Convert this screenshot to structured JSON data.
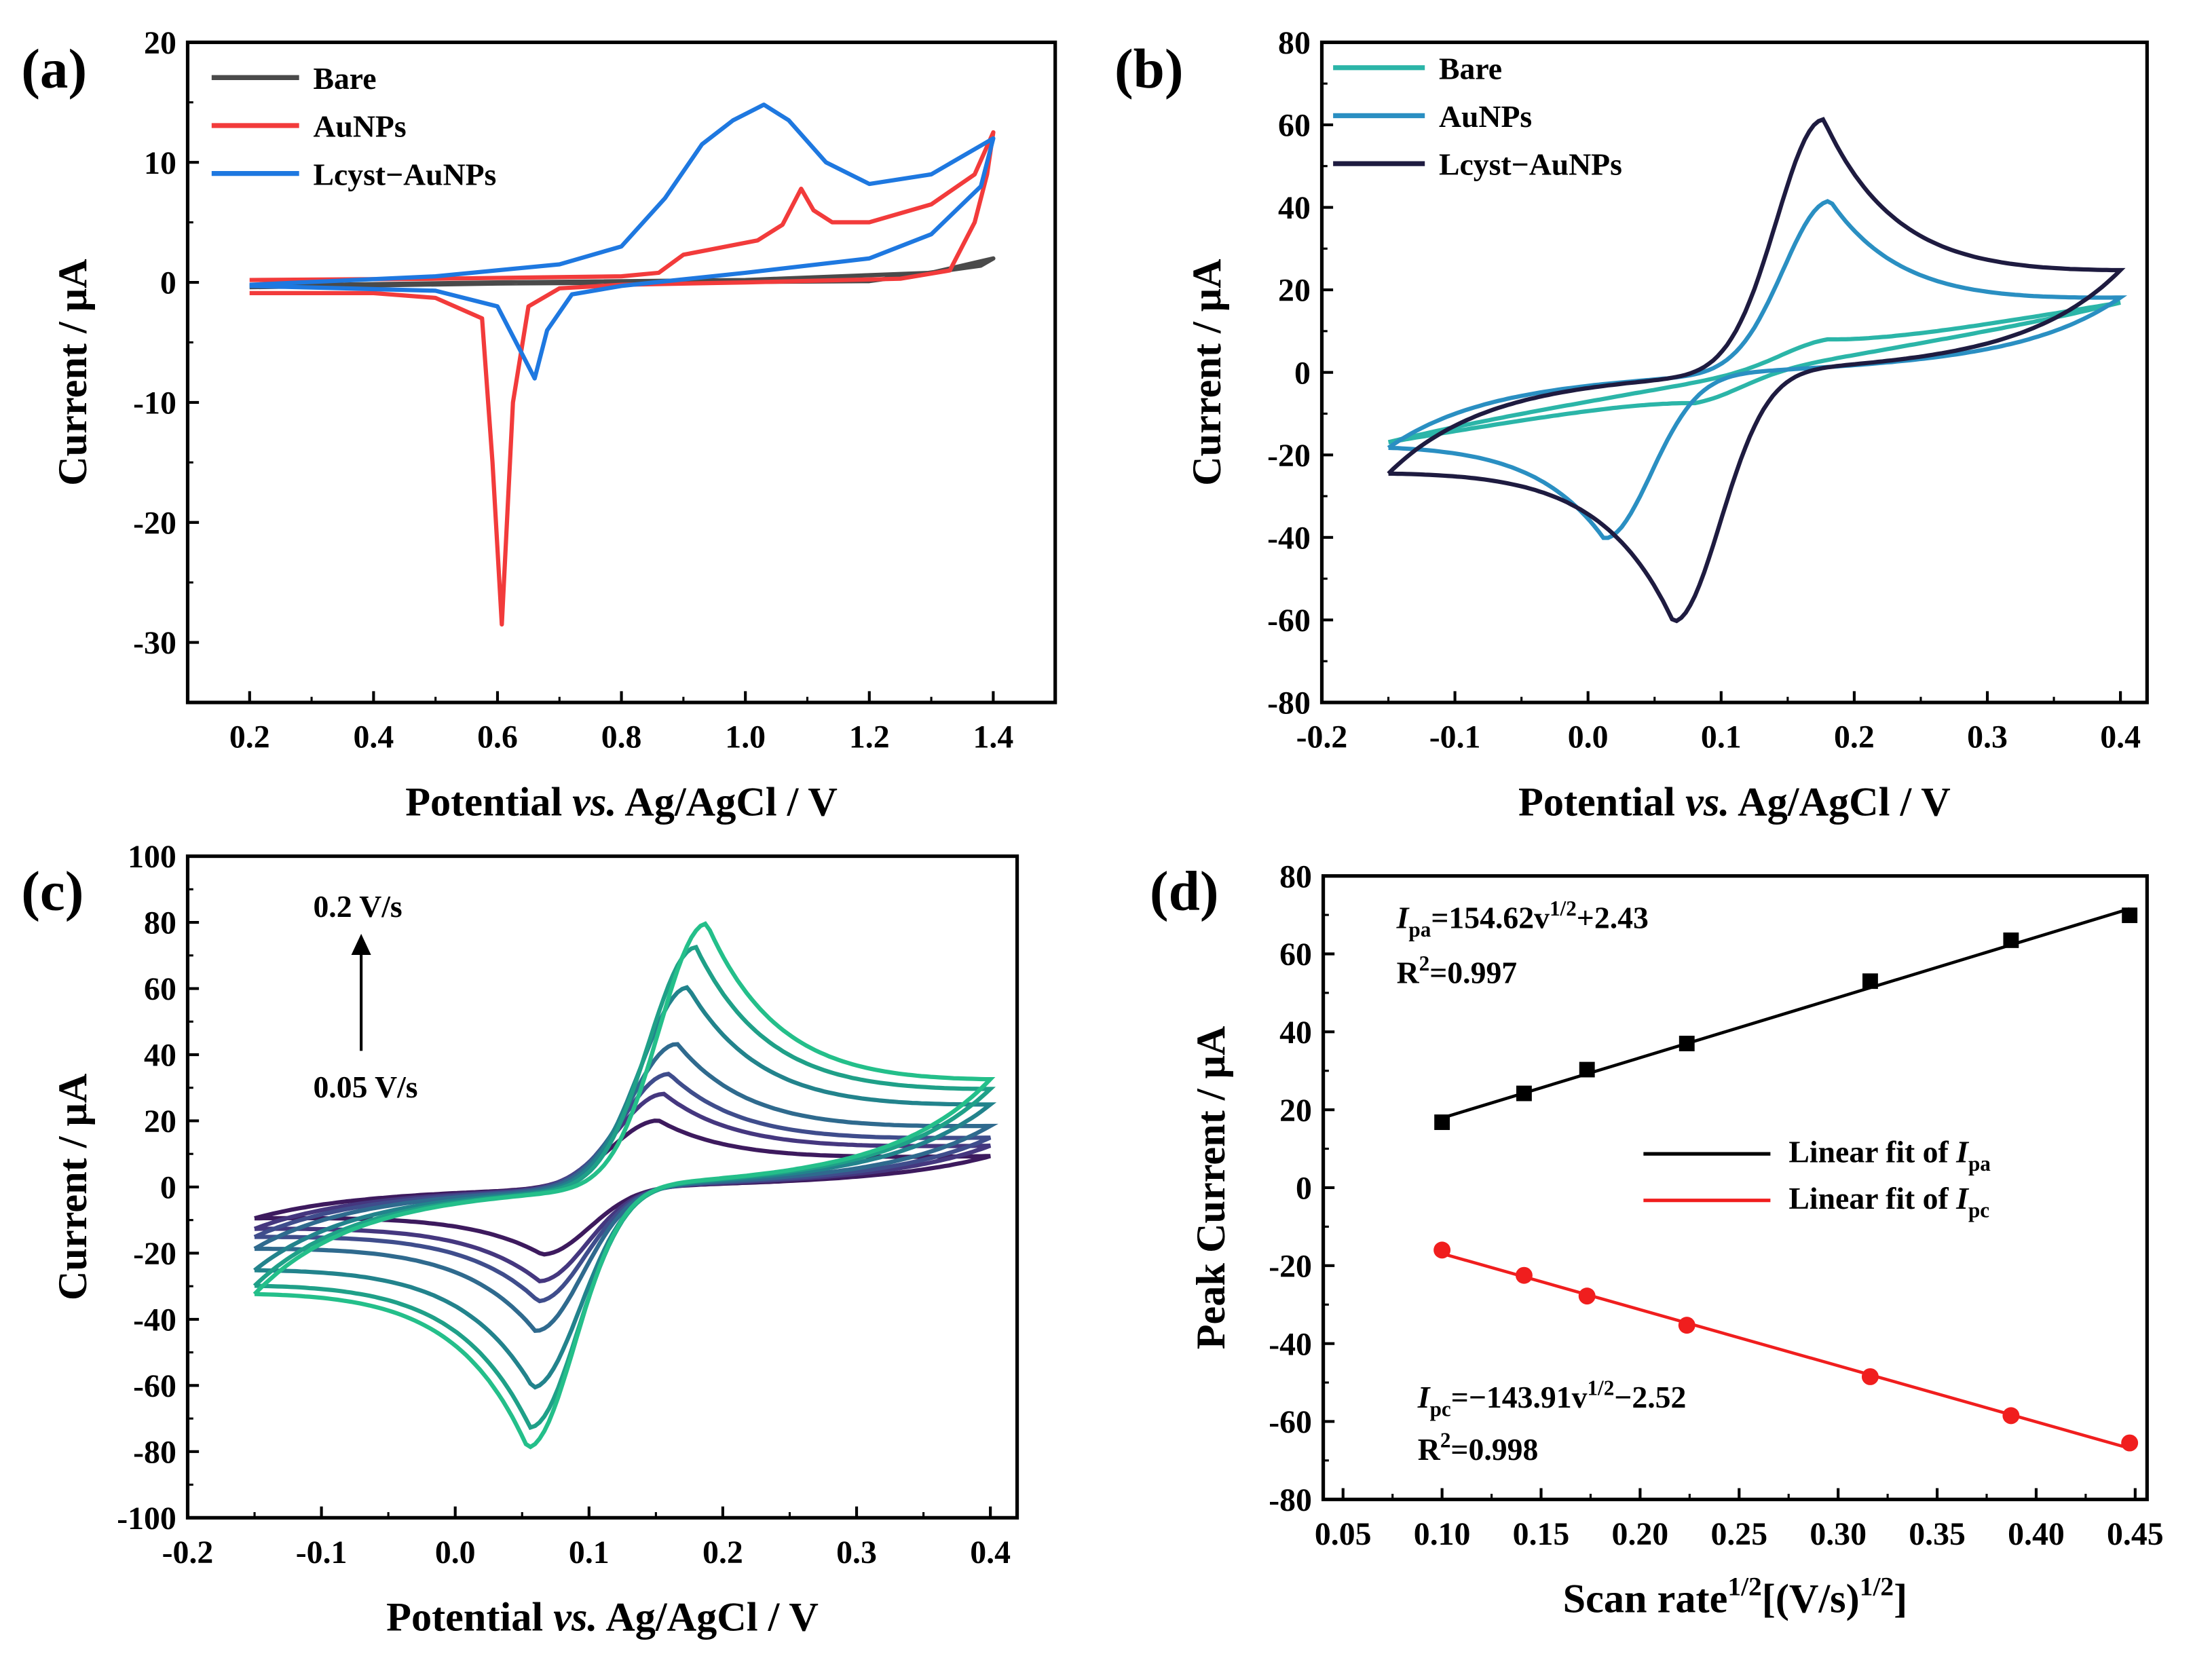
{
  "chart_data": [
    {
      "panel": "(a)",
      "type": "line",
      "xlabel_parts": [
        "Potential ",
        "vs.",
        " Ag/AgCl / V"
      ],
      "ylabel": "Current / μA",
      "xlim": [
        0.1,
        1.5
      ],
      "ylim": [
        -35,
        20
      ],
      "xticks": [
        0.2,
        0.4,
        0.6,
        0.8,
        1.0,
        1.2,
        1.4
      ],
      "xtick_labels": [
        "0.2",
        "0.4",
        "0.6",
        "0.8",
        "1.0",
        "1.2",
        "1.4"
      ],
      "yticks": [
        -30,
        -20,
        -10,
        0,
        10,
        20
      ],
      "ytick_labels": [
        "-30",
        "-20",
        "-10",
        "0",
        "10",
        "20"
      ],
      "legend_position": "top-left",
      "series": [
        {
          "name": "Bare",
          "color": "#4a4a4a",
          "points": [
            [
              0.2,
              -0.3
            ],
            [
              0.6,
              0.0
            ],
            [
              1.0,
              0.2
            ],
            [
              1.3,
              0.8
            ],
            [
              1.4,
              2
            ],
            [
              1.38,
              1.4
            ],
            [
              1.2,
              0.1
            ],
            [
              0.6,
              -0.1
            ],
            [
              0.2,
              -0.4
            ]
          ]
        },
        {
          "name": "AuNPs",
          "color": "#f23b3b",
          "points": [
            [
              0.2,
              0.2
            ],
            [
              0.5,
              0.3
            ],
            [
              0.8,
              0.5
            ],
            [
              0.86,
              0.8
            ],
            [
              0.9,
              2.3
            ],
            [
              0.95,
              2.8
            ],
            [
              1.02,
              3.5
            ],
            [
              1.06,
              4.8
            ],
            [
              1.09,
              7.8
            ],
            [
              1.11,
              6
            ],
            [
              1.14,
              5
            ],
            [
              1.2,
              5
            ],
            [
              1.3,
              6.5
            ],
            [
              1.37,
              9
            ],
            [
              1.4,
              12.5
            ],
            [
              1.39,
              9
            ],
            [
              1.37,
              5
            ],
            [
              1.33,
              1
            ],
            [
              1.25,
              0.3
            ],
            [
              1.0,
              0
            ],
            [
              0.8,
              -0.2
            ],
            [
              0.7,
              -0.5
            ],
            [
              0.65,
              -2
            ],
            [
              0.625,
              -10
            ],
            [
              0.607,
              -28.5
            ],
            [
              0.592,
              -15
            ],
            [
              0.575,
              -3
            ],
            [
              0.5,
              -1.3
            ],
            [
              0.4,
              -0.9
            ],
            [
              0.2,
              -0.9
            ]
          ]
        },
        {
          "name": "Lcyst−AuNPs",
          "color": "#1e78e0",
          "points": [
            [
              0.2,
              -0.2
            ],
            [
              0.5,
              0.5
            ],
            [
              0.7,
              1.5
            ],
            [
              0.8,
              3
            ],
            [
              0.87,
              7
            ],
            [
              0.93,
              11.5
            ],
            [
              0.98,
              13.5
            ],
            [
              1.03,
              14.8
            ],
            [
              1.07,
              13.5
            ],
            [
              1.13,
              10
            ],
            [
              1.2,
              8.2
            ],
            [
              1.3,
              9
            ],
            [
              1.4,
              12
            ],
            [
              1.38,
              8
            ],
            [
              1.3,
              4
            ],
            [
              1.2,
              2
            ],
            [
              1.0,
              0.8
            ],
            [
              0.8,
              -0.3
            ],
            [
              0.72,
              -1
            ],
            [
              0.68,
              -4
            ],
            [
              0.66,
              -8
            ],
            [
              0.64,
              -6
            ],
            [
              0.6,
              -2
            ],
            [
              0.5,
              -0.7
            ],
            [
              0.2,
              -0.3
            ]
          ]
        }
      ]
    },
    {
      "panel": "(b)",
      "type": "line",
      "xlabel_parts": [
        "Potential ",
        "vs.",
        " Ag/AgCl / V"
      ],
      "ylabel": "Current / μA",
      "xlim": [
        -0.2,
        0.42
      ],
      "ylim": [
        -80,
        80
      ],
      "xticks": [
        -0.2,
        -0.1,
        0.0,
        0.1,
        0.2,
        0.3,
        0.4
      ],
      "xtick_labels": [
        "-0.2",
        "-0.1",
        "0.0",
        "0.1",
        "0.2",
        "0.3",
        "0.4"
      ],
      "yticks": [
        -80,
        -60,
        -40,
        -20,
        0,
        20,
        40,
        60,
        80
      ],
      "ytick_labels": [
        "-80",
        "-60",
        "-40",
        "-20",
        "0",
        "20",
        "40",
        "60",
        "80"
      ],
      "potential_range": [
        -0.15,
        0.4
      ],
      "legend_position": "top-left",
      "series": [
        {
          "name": "Bare",
          "color": "#2bb5a8",
          "Epa": 0.18,
          "Ipa": 5,
          "Epc": 0.08,
          "Ipc": 5,
          "slope": 55
        },
        {
          "name": "AuNPs",
          "color": "#2a8fc2",
          "Epa": 0.182,
          "Ipa": 41,
          "Epc": 0.012,
          "Ipc": 39,
          "slope": 12
        },
        {
          "name": "Lcyst−AuNPs",
          "color": "#1e1b40",
          "Epa": 0.177,
          "Ipa": 61,
          "Epc": 0.064,
          "Ipc": 60,
          "slope": 10
        }
      ]
    },
    {
      "panel": "(c)",
      "type": "line",
      "xlabel_parts": [
        "Potential ",
        "vs.",
        " Ag/AgCl / V"
      ],
      "ylabel": "Current / μA",
      "xlim": [
        -0.2,
        0.42
      ],
      "ylim": [
        -100,
        100
      ],
      "xticks": [
        -0.2,
        -0.1,
        0.0,
        0.1,
        0.2,
        0.3,
        0.4
      ],
      "xtick_labels": [
        "-0.2",
        "-0.1",
        "0.0",
        "0.1",
        "0.2",
        "0.3",
        "0.4"
      ],
      "yticks": [
        -100,
        -80,
        -60,
        -40,
        -20,
        0,
        20,
        40,
        60,
        80,
        100
      ],
      "ytick_labels": [
        "-100",
        "-80",
        "-60",
        "-40",
        "-20",
        "0",
        "20",
        "40",
        "60",
        "80",
        "100"
      ],
      "potential_range": [
        -0.15,
        0.4
      ],
      "annotation_top": "0.2 V/s",
      "annotation_bottom": "0.05 V/s",
      "series": [
        {
          "color": "#3d1a5e",
          "Epa": 0.152,
          "Ipa": 20,
          "Epc": 0.065,
          "Ipc": 20,
          "slope": 8
        },
        {
          "color": "#45377f",
          "Epa": 0.156,
          "Ipa": 28,
          "Epc": 0.063,
          "Ipc": 28,
          "slope": 9
        },
        {
          "color": "#3f4d8c",
          "Epa": 0.16,
          "Ipa": 34,
          "Epc": 0.062,
          "Ipc": 34,
          "slope": 10
        },
        {
          "color": "#2f6a8e",
          "Epa": 0.166,
          "Ipa": 43,
          "Epc": 0.06,
          "Ipc": 43,
          "slope": 11
        },
        {
          "color": "#22838c",
          "Epa": 0.174,
          "Ipa": 60,
          "Epc": 0.058,
          "Ipc": 60,
          "slope": 12
        },
        {
          "color": "#1fa088",
          "Epa": 0.18,
          "Ipa": 72,
          "Epc": 0.056,
          "Ipc": 72,
          "slope": 13
        },
        {
          "color": "#24bf8a",
          "Epa": 0.188,
          "Ipa": 79,
          "Epc": 0.054,
          "Ipc": 78,
          "slope": 14
        }
      ]
    },
    {
      "panel": "(d)",
      "type": "scatter",
      "xlabel_parts": [
        "Scan rate",
        "1/2",
        "[(V/s)",
        "1/2",
        "]"
      ],
      "ylabel": "Peak Current / μA",
      "xlim": [
        0.04,
        0.456
      ],
      "ylim": [
        -80,
        80
      ],
      "xticks": [
        0.05,
        0.1,
        0.15,
        0.2,
        0.25,
        0.3,
        0.35,
        0.4,
        0.45
      ],
      "xtick_labels": [
        "0.05",
        "0.10",
        "0.15",
        "0.20",
        "0.25",
        "0.30",
        "0.35",
        "0.40",
        "0.45"
      ],
      "yticks": [
        -80,
        -60,
        -40,
        -20,
        0,
        20,
        40,
        60,
        80
      ],
      "ytick_labels": [
        "-80",
        "-60",
        "-40",
        "-20",
        "0",
        "20",
        "40",
        "60",
        "80"
      ],
      "x": [
        0.1,
        0.1414,
        0.1732,
        0.2236,
        0.3162,
        0.3873,
        0.4472
      ],
      "series": [
        {
          "name": "Ipa",
          "color": "#000000",
          "marker": "square",
          "values": [
            16.8,
            24.2,
            30.3,
            37.0,
            53.0,
            63.5,
            69.9
          ],
          "fit": {
            "slope": 154.62,
            "intercept": 2.43
          }
        },
        {
          "name": "Ipc",
          "color": "#f01e1e",
          "marker": "circle",
          "values": [
            -16.0,
            -22.5,
            -27.8,
            -35.3,
            -48.5,
            -58.5,
            -65.5
          ],
          "fit": {
            "slope": -143.91,
            "intercept": -2.52
          }
        }
      ],
      "legend": [
        {
          "prefix": "Linear fit of ",
          "italic": "I",
          "sub": "pa"
        },
        {
          "prefix": "Linear fit of ",
          "italic": "I",
          "sub": "pc"
        }
      ],
      "equations": [
        {
          "italic": "I",
          "sub": "pa",
          "main": "=154.62v",
          "sup": "1/2",
          "tail": "+2.43",
          "r2_label": "R",
          "r2_sup": "2",
          "r2_value": "=0.997"
        },
        {
          "italic": "I",
          "sub": "pc",
          "main": "=−143.91v",
          "sup": "1/2",
          "tail": "−2.52",
          "r2_label": "R",
          "r2_sup": "2",
          "r2_value": "=0.998"
        }
      ]
    }
  ]
}
